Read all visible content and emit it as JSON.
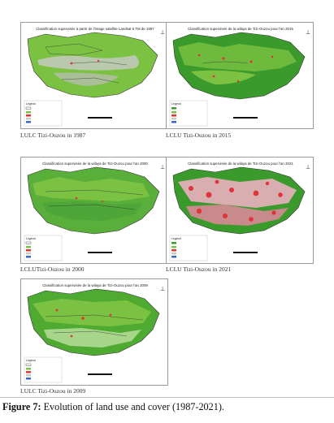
{
  "panels": [
    {
      "map_title": "Classification supervisée à partir de l'image satellite Landsat 5 TM de 1987",
      "caption": "LULC Tizi-Ouzou in 1987",
      "legend_title": "Legend"
    },
    {
      "map_title": "Classification supervisée de la wilaya de Tizi-Ouzou pour l'an 2015",
      "caption": "LCLU Tizi-Ouzou in 2015",
      "legend_title": "Legend"
    },
    {
      "map_title": "Classification supervisée de la wilaya de Tizi-Ouzou pour l'an 2000",
      "caption": "LCLUTizi-Ouzou in 2000",
      "legend_title": "Legend"
    },
    {
      "map_title": "Classification supervisée de la wilaya de Tizi-Ouzou pour l'an 2021",
      "caption": "LCLU Tizi-Ouzou in 2021",
      "legend_title": "Legend"
    },
    {
      "map_title": "Classification supervisée de la wilaya de Tizi-Ouzou pour l'an 2009",
      "caption": "LULC Tizi-Ouzou in 2009",
      "legend_title": "Legend"
    }
  ],
  "figure": {
    "label": "Figure 7:",
    "text": " Evolution of land use and cover (1987-2021)."
  },
  "colors": {
    "vegetation": "#7cc242",
    "dense_vegetation": "#3a9a2c",
    "urban": "#e0343a",
    "bare": "#c9c9c9",
    "water": "#3a66c4",
    "boundary": "#333333"
  }
}
